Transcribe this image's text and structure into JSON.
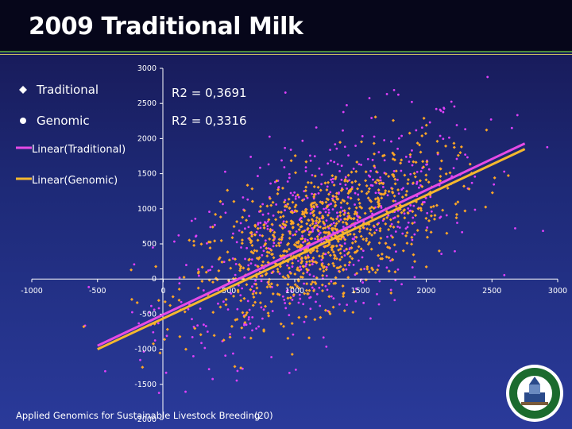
{
  "slide": {
    "title": "2009 Traditional Milk",
    "footer": "Applied Genomics for Sustainable Livestock Breeding",
    "page_number": "(20)"
  },
  "colors": {
    "traditional": "#ffa726",
    "genomic": "#e040fb",
    "trend_traditional": "#f5b82e",
    "trend_genomic": "#e64ae6",
    "axis": "#ffffff"
  },
  "chart_data": {
    "type": "scatter",
    "title": "",
    "xlabel": "",
    "ylabel": "",
    "xlim": [
      -1000,
      3000
    ],
    "ylim": [
      -2000,
      3000
    ],
    "x_ticks": [
      -1000,
      -500,
      0,
      500,
      1000,
      1500,
      2000,
      2500,
      3000
    ],
    "x_tick_labels": [
      "-1000",
      "-500",
      "0",
      "500",
      "1000",
      "1500",
      "2000",
      "2500",
      "3000"
    ],
    "y_ticks": [
      -2000,
      -1500,
      -1000,
      -500,
      0,
      500,
      1000,
      1500,
      2000,
      2500,
      3000
    ],
    "y_tick_labels": [
      "-2000",
      "-1500",
      "-1000",
      "-500",
      "0",
      "500",
      "1000",
      "1500",
      "2000",
      "2500",
      "3000"
    ],
    "legend_position": "left",
    "series": [
      {
        "name": "Traditional",
        "marker": "diamond",
        "approx_points": 900,
        "center": [
          1200,
          600
        ],
        "spread": [
          480,
          600
        ]
      },
      {
        "name": "Genomic",
        "marker": "circle",
        "approx_points": 600,
        "center": [
          1200,
          650
        ],
        "spread": [
          620,
          850
        ]
      }
    ],
    "trendlines": [
      {
        "name": "Linear(Traditional)",
        "series": "Traditional",
        "x": [
          -500,
          2750
        ],
        "y": [
          -1000,
          1850
        ],
        "r_squared": "R2 = 0,3691"
      },
      {
        "name": "Linear(Genomic)",
        "series": "Genomic",
        "x": [
          -500,
          2750
        ],
        "y": [
          -950,
          1930
        ],
        "r_squared": "R2 = 0,3316"
      }
    ]
  }
}
